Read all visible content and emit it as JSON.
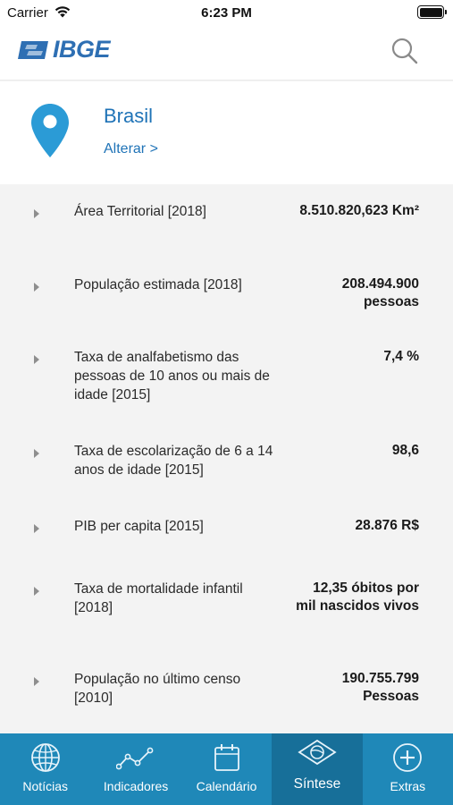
{
  "status_bar": {
    "carrier": "Carrier",
    "time": "6:23 PM"
  },
  "header": {
    "logo_text": "IBGE",
    "brand_color": "#2e6fb3",
    "search_icon": "search-icon"
  },
  "location": {
    "name": "Brasil",
    "change_label": "Alterar >",
    "accent_color": "#1f73b7"
  },
  "indicators": [
    {
      "label": "Área Territorial [2018]",
      "value": "8.510.820,623 Km²"
    },
    {
      "label": "População estimada [2018]",
      "value": "208.494.900 pessoas"
    },
    {
      "label": "Taxa de analfabetismo das pessoas de 10 anos ou mais de idade [2015]",
      "value": "7,4 %"
    },
    {
      "label": "Taxa de escolarização de 6 a 14 anos de idade [2015]",
      "value": "98,6"
    },
    {
      "label": "PIB per capita [2015]",
      "value": "28.876 R$"
    },
    {
      "label": "Taxa de mortalidade infantil [2018]",
      "value": "12,35 óbitos por mil nascidos vivos"
    },
    {
      "label": "População no último censo [2010]",
      "value": "190.755.799 Pessoas"
    }
  ],
  "tab_bar": {
    "color": "#1f88b8",
    "active_color": "#176f99",
    "tabs": [
      {
        "label": "Notícias",
        "icon": "globe-icon",
        "active": false
      },
      {
        "label": "Indicadores",
        "icon": "line-chart-icon",
        "active": false
      },
      {
        "label": "Calendário",
        "icon": "calendar-icon",
        "active": false
      },
      {
        "label": "Síntese",
        "icon": "flag-icon",
        "active": true
      },
      {
        "label": "Extras",
        "icon": "plus-circle-icon",
        "active": false
      }
    ]
  }
}
